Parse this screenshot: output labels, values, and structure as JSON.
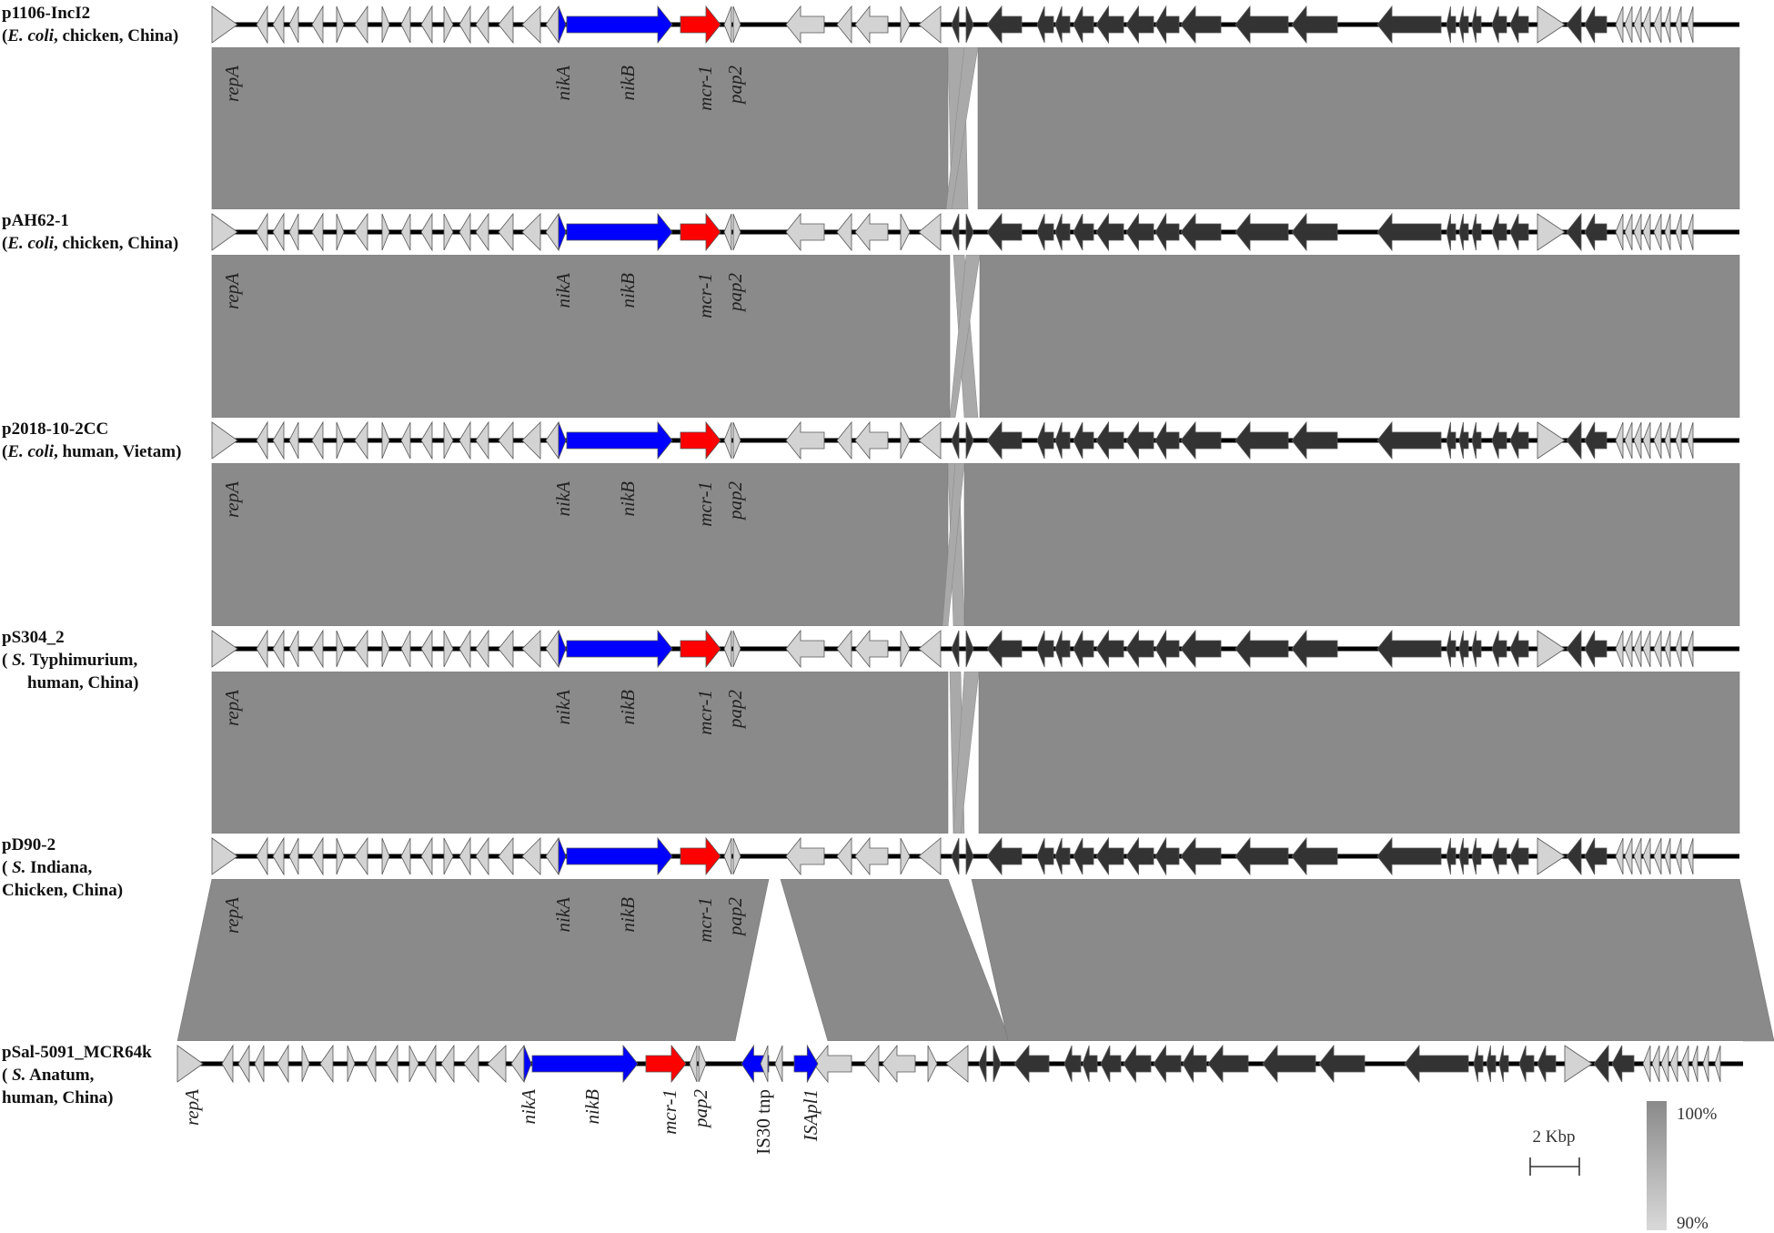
{
  "plasmids": [
    {
      "name": "p1106-IncI2",
      "host_lines": [
        {
          "species": "E. coli",
          "rest": ", chicken, China)"
        }
      ]
    },
    {
      "name": "pAH62-1",
      "host_lines": [
        {
          "species": "E. coli",
          "rest": ", chicken, China)"
        }
      ]
    },
    {
      "name": "p2018-10-2CC",
      "host_lines": [
        {
          "species": "E. coli",
          "rest": ", human, Vietam)"
        }
      ]
    },
    {
      "name": "pS304_2",
      "host_lines": [
        {
          "species": " S.",
          "rest": " Typhimurium,"
        },
        {
          "species": "",
          "rest": "human, China)",
          "indent": true
        }
      ]
    },
    {
      "name": "pD90-2",
      "host_lines": [
        {
          "species": " S.",
          "rest": " Indiana,"
        },
        {
          "species": "",
          "rest": "Chicken, China)",
          "nolead": true
        }
      ]
    },
    {
      "name": "pSal-5091_MCR64k",
      "host_lines": [
        {
          "species": " S.",
          "rest": " Anatum,"
        },
        {
          "species": "",
          "rest": "human, China)",
          "nolead": true
        }
      ]
    }
  ],
  "gene_labels": {
    "repA": "repA",
    "nikA": "nikA",
    "nikB": "nikB",
    "mcr1": "mcr-1",
    "pap2": "pap2",
    "is30": "IS30 tnp",
    "isapl1": "ISApl1"
  },
  "legend": {
    "scale_label": "2 Kbp",
    "identity_max": "100%",
    "identity_min": "90%"
  },
  "colors": {
    "backbone": "#000000",
    "gray_gene": "#d3d3d3",
    "dark_gene": "#333333",
    "nik_gene": "#0000ff",
    "mcr_gene": "#ff0000",
    "homology": "#8a8a8a"
  }
}
